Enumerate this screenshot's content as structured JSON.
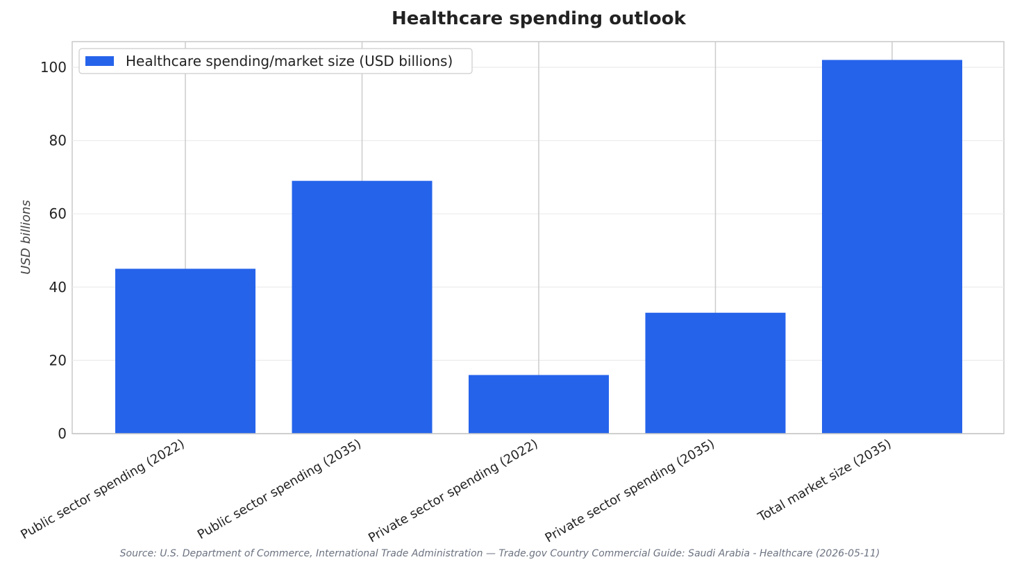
{
  "chart_data": {
    "type": "bar",
    "title": "Healthcare spending outlook",
    "xlabel": "",
    "ylabel": "USD billions",
    "categories": [
      "Public sector spending (2022)",
      "Public sector spending (2035)",
      "Private sector spending (2022)",
      "Private sector spending (2035)",
      "Total market size (2035)"
    ],
    "series": [
      {
        "name": "Healthcare spending/market size (USD billions)",
        "values": [
          45,
          69,
          16,
          33,
          102
        ],
        "color": "#2563eb"
      }
    ],
    "ylim": [
      0,
      107
    ],
    "yticks": [
      0,
      20,
      40,
      60,
      80,
      100
    ],
    "grid": true,
    "legend_position": "top-left"
  },
  "source": "Source: U.S. Department of Commerce, International Trade Administration — Trade.gov Country Commercial Guide: Saudi Arabia - Healthcare (2026-05-11)"
}
